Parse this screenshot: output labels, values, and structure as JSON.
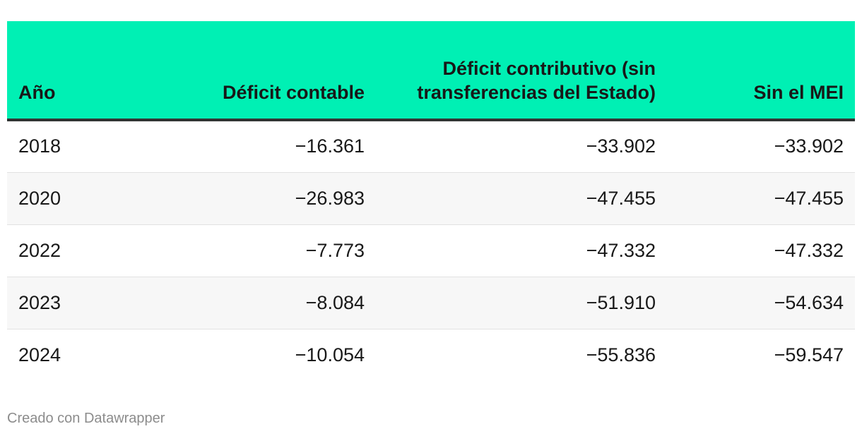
{
  "chart_data": {
    "type": "table",
    "columns": [
      "Año",
      "Déficit contable",
      "Déficit contributivo (sin transferencias del Estado)",
      "Sin el MEI"
    ],
    "rows": [
      {
        "year": "2018",
        "deficit_contable": "−16.361",
        "deficit_contributivo": "−33.902",
        "sin_mei": "−33.902"
      },
      {
        "year": "2020",
        "deficit_contable": "−26.983",
        "deficit_contributivo": "−47.455",
        "sin_mei": "−47.455"
      },
      {
        "year": "2022",
        "deficit_contable": "−7.773",
        "deficit_contributivo": "−47.332",
        "sin_mei": "−47.332"
      },
      {
        "year": "2023",
        "deficit_contable": "−8.084",
        "deficit_contributivo": "−51.910",
        "sin_mei": "−54.634"
      },
      {
        "year": "2024",
        "deficit_contable": "−10.054",
        "deficit_contributivo": "−55.836",
        "sin_mei": "−59.547"
      }
    ]
  },
  "colors": {
    "header_bg": "#00f0b4",
    "header_rule": "#333333",
    "alt_row_bg": "#f7f7f7",
    "footer_text": "#8c8c8c"
  },
  "footer": {
    "credit": "Creado con Datawrapper"
  }
}
